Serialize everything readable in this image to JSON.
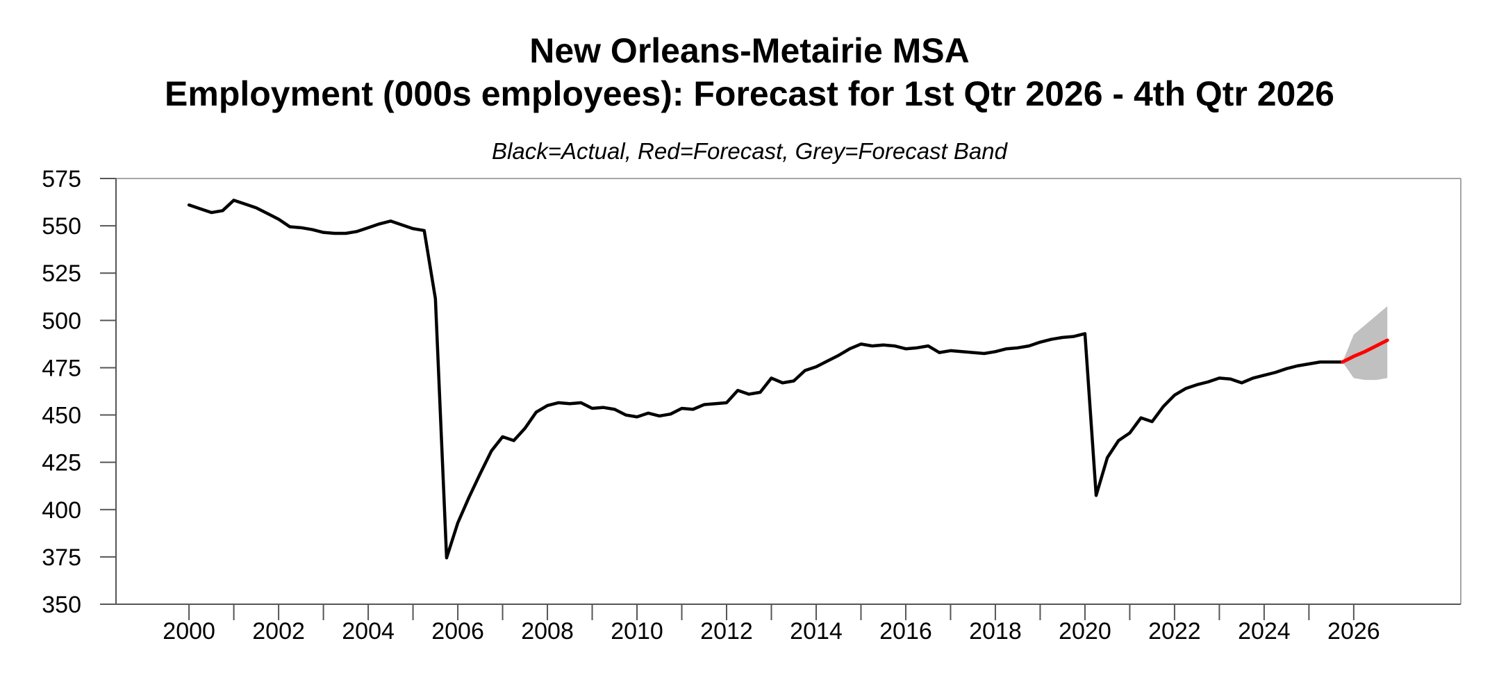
{
  "title": {
    "line1": "New Orleans-Metairie MSA",
    "line2": "Employment (000s employees): Forecast for 1st Qtr 2026 - 4th Qtr 2026"
  },
  "legend_note": "Black=Actual, Red=Forecast, Grey=Forecast Band",
  "colors": {
    "actual_line": "#000000",
    "forecast_line": "#ff0000",
    "forecast_band": "#c0c0c0",
    "axis": "#555555",
    "frame": "#888888",
    "tick_text": "#000000",
    "background": "#ffffff"
  },
  "chart_data": {
    "type": "line",
    "title": "New Orleans-Metairie MSA",
    "subtitle": "Employment (000s employees): Forecast for 1st Qtr 2026 - 4th Qtr 2026",
    "legend_note": "Black=Actual, Red=Forecast, Grey=Forecast Band",
    "xlabel": "",
    "ylabel": "",
    "grid": false,
    "xlim": [
      1998.37,
      2028.39
    ],
    "ylim": [
      350,
      575
    ],
    "y_ticks": [
      350,
      375,
      400,
      425,
      450,
      475,
      500,
      525,
      550,
      575
    ],
    "x_ticks": [
      2000,
      2001,
      2002,
      2003,
      2004,
      2005,
      2006,
      2007,
      2008,
      2009,
      2010,
      2011,
      2012,
      2013,
      2014,
      2015,
      2016,
      2017,
      2018,
      2019,
      2020,
      2021,
      2022,
      2023,
      2024,
      2025,
      2026
    ],
    "x_labeled_ticks": [
      2000,
      2002,
      2004,
      2006,
      2008,
      2010,
      2012,
      2014,
      2016,
      2018,
      2020,
      2022,
      2024,
      2026
    ],
    "x_tick_labels": [
      "2000",
      "2002",
      "2004",
      "2006",
      "2008",
      "2010",
      "2012",
      "2014",
      "2016",
      "2018",
      "2020",
      "2022",
      "2024",
      "2026"
    ],
    "frequency": "quarterly",
    "series": [
      {
        "name": "Actual",
        "kind": "line",
        "color_key": "actual_line",
        "stroke_width": 4.5,
        "x_start": 2000.0,
        "x_step": 0.25,
        "values": [
          561,
          559,
          557,
          558,
          563.5,
          561.5,
          559.5,
          556.5,
          553.5,
          549.5,
          549,
          548,
          546.5,
          546,
          546,
          547,
          549,
          551,
          552.5,
          550.5,
          548.5,
          547.5,
          511.5,
          374.5,
          393,
          406.5,
          419,
          431,
          438.5,
          436.5,
          443,
          451.5,
          455,
          456.5,
          456,
          456.5,
          453.5,
          454,
          453,
          450,
          449,
          451,
          449.5,
          450.5,
          453.5,
          453,
          455.5,
          456,
          456.5,
          463,
          461,
          462,
          469.5,
          467,
          468,
          473.5,
          475.5,
          478.5,
          481.5,
          485,
          487.5,
          486.5,
          487,
          486.5,
          485,
          485.5,
          486.5,
          483,
          484,
          483.5,
          483,
          482.5,
          483.5,
          485,
          485.5,
          486.5,
          488.5,
          490,
          491,
          491.5,
          493,
          407.5,
          427.5,
          436.5,
          440.5,
          448.5,
          446.5,
          454.5,
          460.5,
          464,
          466,
          467.5,
          469.5,
          469,
          467,
          469.5,
          471,
          472.5,
          474.5,
          476,
          477,
          478,
          478,
          478
        ]
      },
      {
        "name": "Forecast",
        "kind": "line",
        "color_key": "forecast_line",
        "stroke_width": 5,
        "x": [
          2025.75,
          2026.0,
          2026.25,
          2026.5,
          2026.75
        ],
        "values": [
          478,
          481,
          483.5,
          486.5,
          489.5
        ]
      },
      {
        "name": "Forecast Band",
        "kind": "band",
        "color_key": "forecast_band",
        "x": [
          2025.75,
          2026.0,
          2026.25,
          2026.5,
          2026.75
        ],
        "upper": [
          478,
          492.5,
          497.5,
          502.5,
          507.5
        ],
        "lower": [
          478,
          469.5,
          468.5,
          468.5,
          469.5
        ]
      }
    ]
  }
}
